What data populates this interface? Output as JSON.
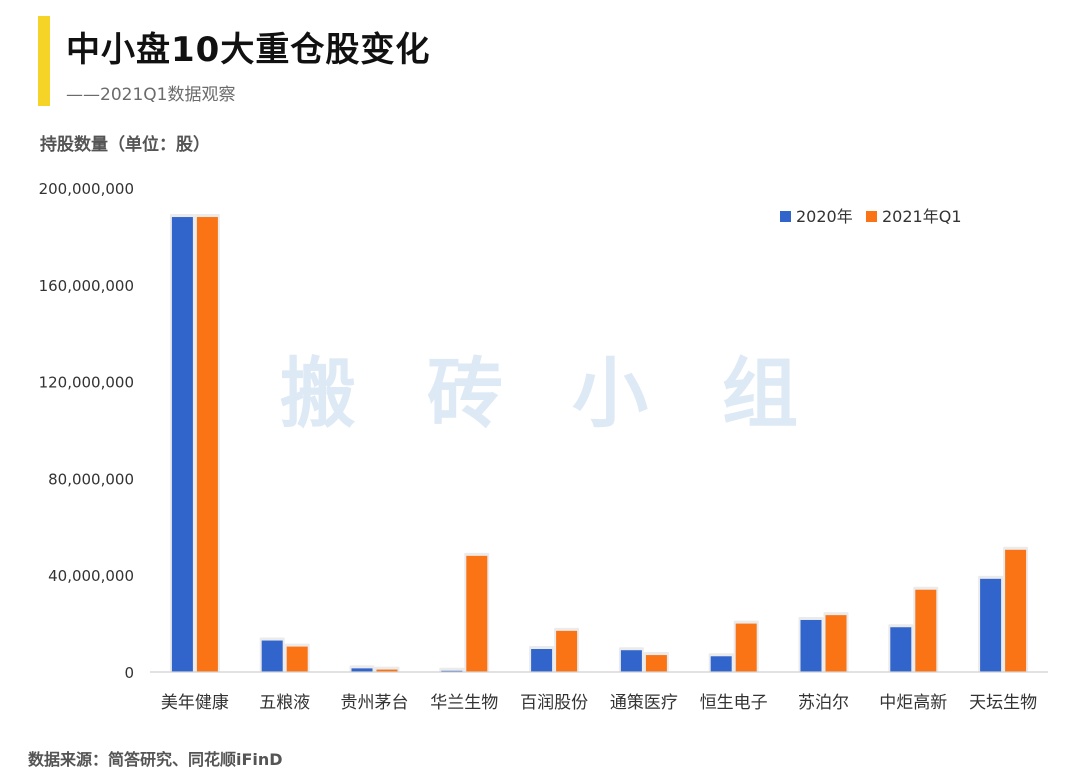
{
  "header": {
    "title": "中小盘10大重仓股变化",
    "subtitle": "——2021Q1数据观察",
    "unit_label": "持股数量（单位：股）"
  },
  "footer": {
    "source": "数据来源：简答研究、同花顺iFinD"
  },
  "watermark": [
    "搬",
    "砖",
    "小",
    "组"
  ],
  "colors": {
    "accent": "#F5D327",
    "series_2020": "#3265CB",
    "series_2021q1": "#FA7415",
    "axis": "#d0d0d0",
    "watermark": "#dde9f5"
  },
  "chart_data": {
    "type": "bar",
    "categories": [
      "美年健康",
      "五粮液",
      "贵州茅台",
      "华兰生物",
      "百润股份",
      "通策医疗",
      "恒生电子",
      "苏泊尔",
      "中炬高新",
      "天坛生物"
    ],
    "series": [
      {
        "name": "2020年",
        "values": [
          188000000,
          13000000,
          1500000,
          500000,
          9500000,
          9000000,
          6500000,
          21500000,
          18500000,
          38500000
        ]
      },
      {
        "name": "2021年Q1",
        "values": [
          188000000,
          10500000,
          1000000,
          48000000,
          17000000,
          7000000,
          20000000,
          23500000,
          34000000,
          50500000
        ]
      }
    ],
    "yticks": [
      "0",
      "40,000,000",
      "80,000,000",
      "120,000,000",
      "160,000,000",
      "200,000,000"
    ],
    "ylim": [
      0,
      200000000
    ],
    "ylabel": "持股数量（单位：股）",
    "xlabel": "",
    "grid": false,
    "legend_position": "top-right"
  }
}
